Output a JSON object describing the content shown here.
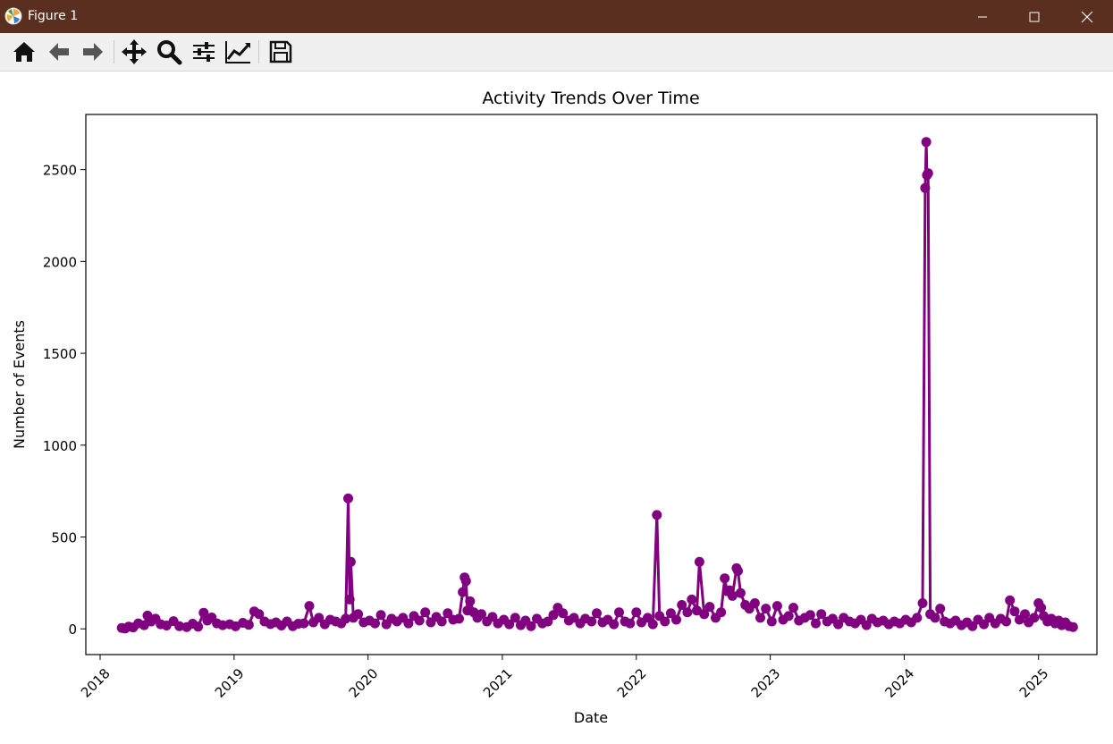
{
  "window": {
    "title": "Figure 1"
  },
  "toolbar": {
    "tools": [
      "home-icon",
      "back-icon",
      "forward-icon",
      "pan-icon",
      "zoom-icon",
      "configure-subplots-icon",
      "edit-axis-icon",
      "save-icon"
    ]
  },
  "colors": {
    "titlebar": "#5a2f1f",
    "series": "#800080"
  },
  "chart_data": {
    "type": "line",
    "title": "Activity Trends Over Time",
    "xlabel": "Date",
    "ylabel": "Number of Events",
    "x_tick_labels": [
      "2018",
      "2019",
      "2020",
      "2021",
      "2022",
      "2023",
      "2024",
      "2025"
    ],
    "y_tick_labels": [
      "0",
      "500",
      "1000",
      "1500",
      "2000",
      "2500"
    ],
    "y_ticks": [
      0,
      500,
      1000,
      1500,
      2000,
      2500
    ],
    "xlim": [
      "2017-11-23",
      "2025-06-09"
    ],
    "ylim": [
      -140,
      2800
    ],
    "marker": "o",
    "grid": false,
    "series": [
      {
        "color": "#800080",
        "points": [
          [
            "2018-03-01",
            5
          ],
          [
            "2018-03-10",
            2
          ],
          [
            "2018-03-20",
            12
          ],
          [
            "2018-04-01",
            8
          ],
          [
            "2018-04-15",
            30
          ],
          [
            "2018-05-01",
            20
          ],
          [
            "2018-05-10",
            72
          ],
          [
            "2018-05-20",
            40
          ],
          [
            "2018-06-01",
            55
          ],
          [
            "2018-06-15",
            25
          ],
          [
            "2018-07-01",
            18
          ],
          [
            "2018-07-20",
            42
          ],
          [
            "2018-08-05",
            15
          ],
          [
            "2018-08-25",
            10
          ],
          [
            "2018-09-10",
            28
          ],
          [
            "2018-09-25",
            12
          ],
          [
            "2018-10-10",
            88
          ],
          [
            "2018-10-20",
            45
          ],
          [
            "2018-11-01",
            62
          ],
          [
            "2018-11-15",
            30
          ],
          [
            "2018-12-01",
            20
          ],
          [
            "2018-12-20",
            25
          ],
          [
            "2019-01-05",
            14
          ],
          [
            "2019-01-25",
            33
          ],
          [
            "2019-02-10",
            22
          ],
          [
            "2019-02-25",
            95
          ],
          [
            "2019-03-10",
            80
          ],
          [
            "2019-03-25",
            40
          ],
          [
            "2019-04-10",
            26
          ],
          [
            "2019-04-25",
            35
          ],
          [
            "2019-05-10",
            18
          ],
          [
            "2019-05-25",
            40
          ],
          [
            "2019-06-10",
            15
          ],
          [
            "2019-06-25",
            28
          ],
          [
            "2019-07-10",
            30
          ],
          [
            "2019-07-25",
            125
          ],
          [
            "2019-08-05",
            35
          ],
          [
            "2019-08-20",
            60
          ],
          [
            "2019-09-05",
            25
          ],
          [
            "2019-09-20",
            50
          ],
          [
            "2019-10-05",
            40
          ],
          [
            "2019-10-20",
            30
          ],
          [
            "2019-11-01",
            55
          ],
          [
            "2019-11-08",
            710
          ],
          [
            "2019-11-12",
            160
          ],
          [
            "2019-11-15",
            365
          ],
          [
            "2019-11-22",
            60
          ],
          [
            "2019-12-05",
            80
          ],
          [
            "2019-12-20",
            35
          ],
          [
            "2020-01-05",
            45
          ],
          [
            "2020-01-20",
            30
          ],
          [
            "2020-02-05",
            75
          ],
          [
            "2020-02-20",
            25
          ],
          [
            "2020-03-05",
            55
          ],
          [
            "2020-03-20",
            40
          ],
          [
            "2020-04-05",
            60
          ],
          [
            "2020-04-20",
            30
          ],
          [
            "2020-05-05",
            70
          ],
          [
            "2020-05-20",
            45
          ],
          [
            "2020-06-05",
            90
          ],
          [
            "2020-06-20",
            35
          ],
          [
            "2020-07-05",
            65
          ],
          [
            "2020-07-20",
            40
          ],
          [
            "2020-08-05",
            85
          ],
          [
            "2020-08-20",
            50
          ],
          [
            "2020-09-05",
            55
          ],
          [
            "2020-09-15",
            200
          ],
          [
            "2020-09-20",
            280
          ],
          [
            "2020-09-24",
            260
          ],
          [
            "2020-09-28",
            100
          ],
          [
            "2020-10-05",
            150
          ],
          [
            "2020-10-15",
            90
          ],
          [
            "2020-10-25",
            60
          ],
          [
            "2020-11-05",
            80
          ],
          [
            "2020-11-20",
            40
          ],
          [
            "2020-12-05",
            65
          ],
          [
            "2020-12-20",
            30
          ],
          [
            "2021-01-05",
            50
          ],
          [
            "2021-01-20",
            25
          ],
          [
            "2021-02-05",
            60
          ],
          [
            "2021-02-20",
            20
          ],
          [
            "2021-03-05",
            45
          ],
          [
            "2021-03-20",
            15
          ],
          [
            "2021-04-05",
            55
          ],
          [
            "2021-04-20",
            30
          ],
          [
            "2021-05-05",
            40
          ],
          [
            "2021-05-20",
            75
          ],
          [
            "2021-06-01",
            115
          ],
          [
            "2021-06-15",
            85
          ],
          [
            "2021-07-01",
            45
          ],
          [
            "2021-07-15",
            60
          ],
          [
            "2021-08-01",
            30
          ],
          [
            "2021-08-15",
            55
          ],
          [
            "2021-09-01",
            40
          ],
          [
            "2021-09-15",
            85
          ],
          [
            "2021-10-01",
            35
          ],
          [
            "2021-10-15",
            50
          ],
          [
            "2021-11-01",
            25
          ],
          [
            "2021-11-15",
            90
          ],
          [
            "2021-12-01",
            40
          ],
          [
            "2021-12-15",
            30
          ],
          [
            "2022-01-01",
            90
          ],
          [
            "2022-01-15",
            35
          ],
          [
            "2022-02-01",
            60
          ],
          [
            "2022-02-15",
            25
          ],
          [
            "2022-02-26",
            620
          ],
          [
            "2022-03-05",
            70
          ],
          [
            "2022-03-20",
            40
          ],
          [
            "2022-04-05",
            85
          ],
          [
            "2022-04-20",
            50
          ],
          [
            "2022-05-05",
            130
          ],
          [
            "2022-05-20",
            90
          ],
          [
            "2022-06-01",
            160
          ],
          [
            "2022-06-15",
            100
          ],
          [
            "2022-06-22",
            365
          ],
          [
            "2022-07-05",
            80
          ],
          [
            "2022-07-20",
            120
          ],
          [
            "2022-08-05",
            60
          ],
          [
            "2022-08-20",
            90
          ],
          [
            "2022-08-30",
            275
          ],
          [
            "2022-09-05",
            205
          ],
          [
            "2022-09-12",
            210
          ],
          [
            "2022-09-20",
            180
          ],
          [
            "2022-10-01",
            330
          ],
          [
            "2022-10-05",
            315
          ],
          [
            "2022-10-12",
            195
          ],
          [
            "2022-10-25",
            130
          ],
          [
            "2022-11-05",
            110
          ],
          [
            "2022-11-20",
            140
          ],
          [
            "2022-12-05",
            60
          ],
          [
            "2022-12-20",
            110
          ],
          [
            "2023-01-05",
            40
          ],
          [
            "2023-01-20",
            125
          ],
          [
            "2023-02-05",
            50
          ],
          [
            "2023-02-20",
            70
          ],
          [
            "2023-03-05",
            115
          ],
          [
            "2023-03-20",
            45
          ],
          [
            "2023-04-05",
            60
          ],
          [
            "2023-04-20",
            75
          ],
          [
            "2023-05-05",
            30
          ],
          [
            "2023-05-20",
            80
          ],
          [
            "2023-06-05",
            40
          ],
          [
            "2023-06-20",
            55
          ],
          [
            "2023-07-05",
            25
          ],
          [
            "2023-07-20",
            60
          ],
          [
            "2023-08-05",
            40
          ],
          [
            "2023-08-20",
            30
          ],
          [
            "2023-09-05",
            50
          ],
          [
            "2023-09-20",
            20
          ],
          [
            "2023-10-05",
            55
          ],
          [
            "2023-10-20",
            35
          ],
          [
            "2023-11-05",
            45
          ],
          [
            "2023-11-20",
            25
          ],
          [
            "2023-12-05",
            40
          ],
          [
            "2023-12-20",
            30
          ],
          [
            "2024-01-05",
            50
          ],
          [
            "2024-01-20",
            35
          ],
          [
            "2024-02-05",
            60
          ],
          [
            "2024-02-20",
            140
          ],
          [
            "2024-02-27",
            2400
          ],
          [
            "2024-03-01",
            2650
          ],
          [
            "2024-03-03",
            2470
          ],
          [
            "2024-03-06",
            2480
          ],
          [
            "2024-03-12",
            80
          ],
          [
            "2024-03-25",
            60
          ],
          [
            "2024-04-08",
            110
          ],
          [
            "2024-04-20",
            40
          ],
          [
            "2024-05-05",
            30
          ],
          [
            "2024-05-20",
            45
          ],
          [
            "2024-06-05",
            20
          ],
          [
            "2024-06-20",
            35
          ],
          [
            "2024-07-05",
            15
          ],
          [
            "2024-07-20",
            50
          ],
          [
            "2024-08-05",
            25
          ],
          [
            "2024-08-20",
            60
          ],
          [
            "2024-09-05",
            30
          ],
          [
            "2024-09-20",
            55
          ],
          [
            "2024-10-05",
            40
          ],
          [
            "2024-10-15",
            155
          ],
          [
            "2024-10-28",
            95
          ],
          [
            "2024-11-10",
            50
          ],
          [
            "2024-11-25",
            80
          ],
          [
            "2024-12-05",
            35
          ],
          [
            "2024-12-20",
            60
          ],
          [
            "2025-01-01",
            140
          ],
          [
            "2025-01-08",
            115
          ],
          [
            "2025-01-15",
            70
          ],
          [
            "2025-01-25",
            40
          ],
          [
            "2025-02-05",
            55
          ],
          [
            "2025-02-15",
            30
          ],
          [
            "2025-02-25",
            45
          ],
          [
            "2025-03-05",
            20
          ],
          [
            "2025-03-15",
            35
          ],
          [
            "2025-03-25",
            15
          ],
          [
            "2025-04-05",
            10
          ]
        ]
      }
    ]
  }
}
